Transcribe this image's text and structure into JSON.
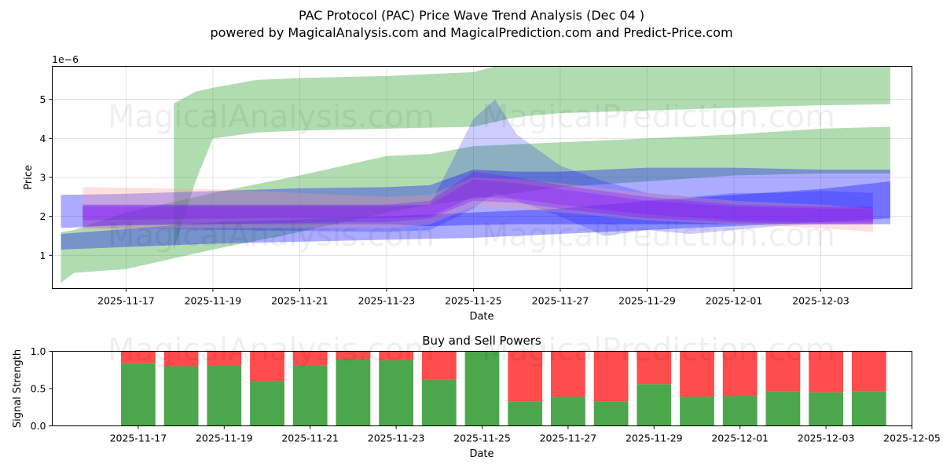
{
  "title_line1": "PAC Protocol (PAC) Price Wave Trend Analysis (Dec 04 )",
  "title_line2": "powered by MagicalAnalysis.com and MagicalPrediction.com and Predict-Price.com",
  "watermarks": [
    "MagicalAnalysis.com",
    "MagicalPrediction.com"
  ],
  "colors": {
    "green": "#2ca02c",
    "blue": "#0000ff",
    "red": "#ff9999",
    "purple": "#8000ff",
    "buy": "#4ca64c",
    "sell": "#ff4c4c"
  },
  "chart_data": [
    {
      "type": "area",
      "title": "",
      "xlabel": "Date",
      "ylabel": "Price",
      "y_exponent_label": "1e−6",
      "x_tick_labels": [
        "2025-11-17",
        "2025-11-19",
        "2025-11-21",
        "2025-11-23",
        "2025-11-25",
        "2025-11-27",
        "2025-11-29",
        "2025-12-01",
        "2025-12-03"
      ],
      "y_tick_labels": [
        "1",
        "2",
        "3",
        "4",
        "5"
      ],
      "y_ticks": [
        1,
        2,
        3,
        4,
        5
      ],
      "xlim": [
        -1.7,
        18.1
      ],
      "ylim": [
        0.15,
        5.85
      ],
      "grid": true,
      "bands": [
        {
          "name": "green-upper",
          "color": "green",
          "opacity": 0.37,
          "x": [
            1.1,
            1.6,
            2.0,
            3.0,
            4.0,
            6.0,
            8.0,
            9.0,
            10.0,
            13.0,
            15.0,
            16.0,
            17.6
          ],
          "lower": [
            1.15,
            2.9,
            4.0,
            4.15,
            4.2,
            4.25,
            4.3,
            4.55,
            4.65,
            4.75,
            4.82,
            4.85,
            4.88
          ],
          "upper": [
            4.9,
            5.2,
            5.3,
            5.5,
            5.55,
            5.6,
            5.7,
            6.0,
            6.1,
            6.1,
            6.1,
            6.05,
            5.85
          ]
        },
        {
          "name": "green-lower",
          "color": "green",
          "opacity": 0.37,
          "x": [
            -1.5,
            -1.2,
            0.0,
            2.0,
            4.0,
            6.0,
            7.0,
            8.0,
            10.0,
            12.0,
            14.0,
            16.0,
            17.6
          ],
          "lower": [
            0.3,
            0.55,
            0.65,
            1.15,
            1.6,
            2.1,
            2.3,
            2.45,
            2.75,
            2.9,
            3.05,
            3.1,
            3.1
          ],
          "upper": [
            1.6,
            1.65,
            2.1,
            2.6,
            3.05,
            3.55,
            3.6,
            3.8,
            3.9,
            4.0,
            4.1,
            4.25,
            4.3
          ]
        },
        {
          "name": "blue-wide",
          "color": "blue",
          "opacity": 0.33,
          "x": [
            -1.5,
            0.0,
            2.0,
            4.0,
            6.0,
            7.0,
            8.0,
            9.0,
            10.0,
            12.0,
            14.0,
            16.0,
            17.6
          ],
          "lower": [
            1.7,
            1.78,
            1.8,
            1.8,
            1.8,
            1.75,
            1.78,
            1.8,
            1.8,
            1.8,
            1.8,
            1.8,
            1.8
          ],
          "upper": [
            2.55,
            2.58,
            2.65,
            2.72,
            2.75,
            2.8,
            3.2,
            3.15,
            3.15,
            3.25,
            3.25,
            3.2,
            3.2
          ]
        },
        {
          "name": "blue-diagonal",
          "color": "blue",
          "opacity": 0.33,
          "x": [
            -1.5,
            2.0,
            6.0,
            8.0,
            10.0,
            12.0,
            14.0,
            16.0,
            17.6
          ],
          "lower": [
            1.15,
            1.3,
            1.4,
            1.45,
            1.55,
            1.65,
            1.75,
            1.85,
            1.95
          ],
          "upper": [
            1.55,
            1.85,
            2.0,
            2.1,
            2.2,
            2.4,
            2.55,
            2.7,
            2.9
          ]
        },
        {
          "name": "blue-peak",
          "color": "blue",
          "opacity": 0.2,
          "x": [
            -1.0,
            6.0,
            7.0,
            8.0,
            8.5,
            9.0,
            10.0,
            11.0,
            12.0,
            13.0,
            14.0,
            15.0,
            16.0,
            17.2
          ],
          "lower": [
            1.7,
            1.6,
            1.65,
            2.2,
            2.6,
            2.4,
            2.0,
            1.5,
            1.65,
            1.55,
            1.65,
            1.75,
            1.8,
            1.8
          ],
          "upper": [
            2.3,
            2.3,
            2.3,
            4.5,
            5.0,
            4.1,
            3.3,
            2.9,
            2.6,
            2.5,
            2.6,
            2.6,
            2.65,
            2.6
          ]
        },
        {
          "name": "red-faint",
          "color": "red",
          "opacity": 0.3,
          "x": [
            -1.0,
            2.0,
            5.0,
            6.0,
            7.0,
            8.0,
            9.0,
            10.0,
            12.0,
            14.0,
            16.0,
            17.2
          ],
          "lower": [
            1.65,
            1.7,
            1.7,
            1.7,
            1.8,
            2.25,
            2.2,
            2.1,
            1.9,
            1.8,
            1.7,
            1.6
          ],
          "upper": [
            2.75,
            2.7,
            2.55,
            2.5,
            2.55,
            3.0,
            2.95,
            2.85,
            2.6,
            2.4,
            2.3,
            2.2
          ]
        },
        {
          "name": "purple-core",
          "color": "purple",
          "opacity": 0.27,
          "x": [
            -1.0,
            2.0,
            5.0,
            6.0,
            7.0,
            8.0,
            9.0,
            10.0,
            12.0,
            14.0,
            16.0,
            17.2
          ],
          "lower": [
            1.75,
            1.8,
            1.85,
            1.85,
            1.95,
            2.4,
            2.35,
            2.2,
            1.95,
            1.85,
            1.8,
            1.8
          ],
          "upper": [
            2.3,
            2.3,
            2.3,
            2.3,
            2.4,
            3.15,
            3.0,
            2.8,
            2.5,
            2.3,
            2.25,
            2.25
          ]
        },
        {
          "name": "purple-inner",
          "color": "purple",
          "opacity": 0.25,
          "x": [
            -1.0,
            3.0,
            6.0,
            7.0,
            8.0,
            9.0,
            10.0,
            12.0,
            14.0,
            16.0,
            17.2
          ],
          "lower": [
            1.9,
            1.95,
            1.95,
            2.0,
            2.5,
            2.45,
            2.3,
            2.05,
            1.9,
            1.85,
            1.85
          ],
          "upper": [
            2.25,
            2.25,
            2.25,
            2.3,
            2.95,
            2.85,
            2.7,
            2.4,
            2.25,
            2.2,
            2.2
          ]
        }
      ]
    },
    {
      "type": "bar",
      "title": "Buy and Sell Powers",
      "xlabel": "Date",
      "ylabel": "Signal Strength",
      "ylim": [
        0,
        1
      ],
      "y_tick_labels": [
        "0.0",
        "0.5",
        "1.0"
      ],
      "y_ticks": [
        0,
        0.5,
        1.0
      ],
      "x_tick_labels": [
        "2025-11-17",
        "2025-11-19",
        "2025-11-21",
        "2025-11-23",
        "2025-11-25",
        "2025-11-27",
        "2025-11-29",
        "2025-12-01",
        "2025-12-03",
        "2025-12-05"
      ],
      "xlim": [
        -2.0,
        18.0
      ],
      "categories": [
        "2025-11-17",
        "2025-11-18",
        "2025-11-19",
        "2025-11-20",
        "2025-11-21",
        "2025-11-22",
        "2025-11-23",
        "2025-11-24",
        "2025-11-25",
        "2025-11-26",
        "2025-11-27",
        "2025-11-28",
        "2025-11-29",
        "2025-11-30",
        "2025-12-01",
        "2025-12-02",
        "2025-12-03",
        "2025-12-04"
      ],
      "series": [
        {
          "name": "Buy",
          "color": "buy",
          "values": [
            0.84,
            0.8,
            0.81,
            0.6,
            0.81,
            0.9,
            0.88,
            0.62,
            1.0,
            0.33,
            0.39,
            0.33,
            0.56,
            0.39,
            0.4,
            0.46,
            0.45,
            0.46
          ]
        },
        {
          "name": "Sell",
          "color": "sell",
          "values": [
            0.16,
            0.2,
            0.19,
            0.4,
            0.19,
            0.1,
            0.12,
            0.38,
            0.0,
            0.67,
            0.61,
            0.67,
            0.44,
            0.61,
            0.6,
            0.54,
            0.55,
            0.54
          ]
        }
      ]
    }
  ]
}
